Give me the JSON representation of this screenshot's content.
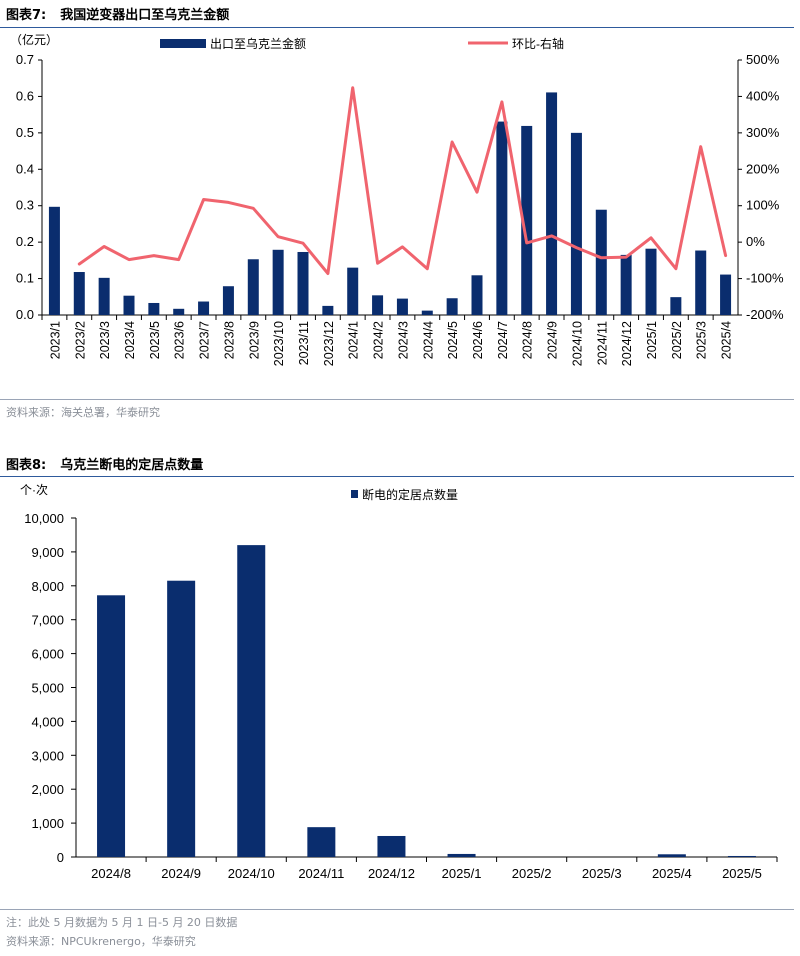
{
  "figures": [
    {
      "number": "图表7:",
      "title": "我国逆变器出口至乌克兰金额",
      "source": "资料来源：海关总署，华泰研究"
    },
    {
      "number": "图表8:",
      "title": "乌克兰断电的定居点数量",
      "note": "注：此处 5 月数据为 5 月 1 日-5 月 20 日数据",
      "source": "资料来源：NPCUkrenergo，华泰研究"
    }
  ],
  "colors": {
    "bar": "#0a2d6e",
    "line": "#f0646e",
    "axis": "#000000",
    "rule": "#2e5a9c"
  },
  "chart_data": [
    {
      "type": "bar+line",
      "title": "我国逆变器出口至乌克兰金额",
      "unit_label": "（亿元）",
      "categories": [
        "2023/1",
        "2023/2",
        "2023/3",
        "2023/4",
        "2023/5",
        "2023/6",
        "2023/7",
        "2023/8",
        "2023/9",
        "2023/10",
        "2023/11",
        "2023/12",
        "2024/1",
        "2024/2",
        "2024/3",
        "2024/4",
        "2024/5",
        "2024/6",
        "2024/7",
        "2024/8",
        "2024/9",
        "2024/10",
        "2024/11",
        "2024/12",
        "2025/1",
        "2025/2",
        "2025/3",
        "2025/4"
      ],
      "series": [
        {
          "name": "出口至乌克兰金额",
          "type": "bar",
          "axis": "left",
          "values": [
            0.297,
            0.118,
            0.102,
            0.053,
            0.033,
            0.017,
            0.037,
            0.079,
            0.153,
            0.179,
            0.173,
            0.025,
            0.13,
            0.054,
            0.045,
            0.012,
            0.046,
            0.109,
            0.531,
            0.519,
            0.611,
            0.5,
            0.289,
            0.165,
            0.182,
            0.049,
            0.177,
            0.111
          ]
        },
        {
          "name": "环比-右轴",
          "type": "line",
          "axis": "right",
          "values": [
            null,
            -60,
            -12,
            -48,
            -37,
            -48,
            117,
            109,
            93,
            15,
            -3,
            -86,
            424,
            -58,
            -13,
            -73,
            275,
            137,
            385,
            -2,
            17,
            -15,
            -43,
            -41,
            12,
            -73,
            262,
            -37
          ]
        }
      ],
      "y_left": {
        "range": [
          0,
          0.7
        ],
        "ticks": [
          "0.0",
          "0.1",
          "0.2",
          "0.3",
          "0.4",
          "0.5",
          "0.6",
          "0.7"
        ]
      },
      "y_right": {
        "range": [
          -200,
          500
        ],
        "ticks": [
          "-200%",
          "-100%",
          "0%",
          "100%",
          "200%",
          "300%",
          "400%",
          "500%"
        ]
      }
    },
    {
      "type": "bar",
      "title": "乌克兰断电的定居点数量",
      "unit_label": "个·次",
      "categories": [
        "2024/8",
        "2024/9",
        "2024/10",
        "2024/11",
        "2024/12",
        "2025/1",
        "2025/2",
        "2025/3",
        "2025/4",
        "2025/5"
      ],
      "series": [
        {
          "name": "断电的定居点数量",
          "values": [
            7720,
            8150,
            9200,
            880,
            620,
            90,
            0,
            0,
            80,
            30
          ]
        }
      ],
      "y": {
        "range": [
          0,
          10000
        ],
        "ticks": [
          "0",
          "1,000",
          "2,000",
          "3,000",
          "4,000",
          "5,000",
          "6,000",
          "7,000",
          "8,000",
          "9,000",
          "10,000"
        ]
      }
    }
  ]
}
